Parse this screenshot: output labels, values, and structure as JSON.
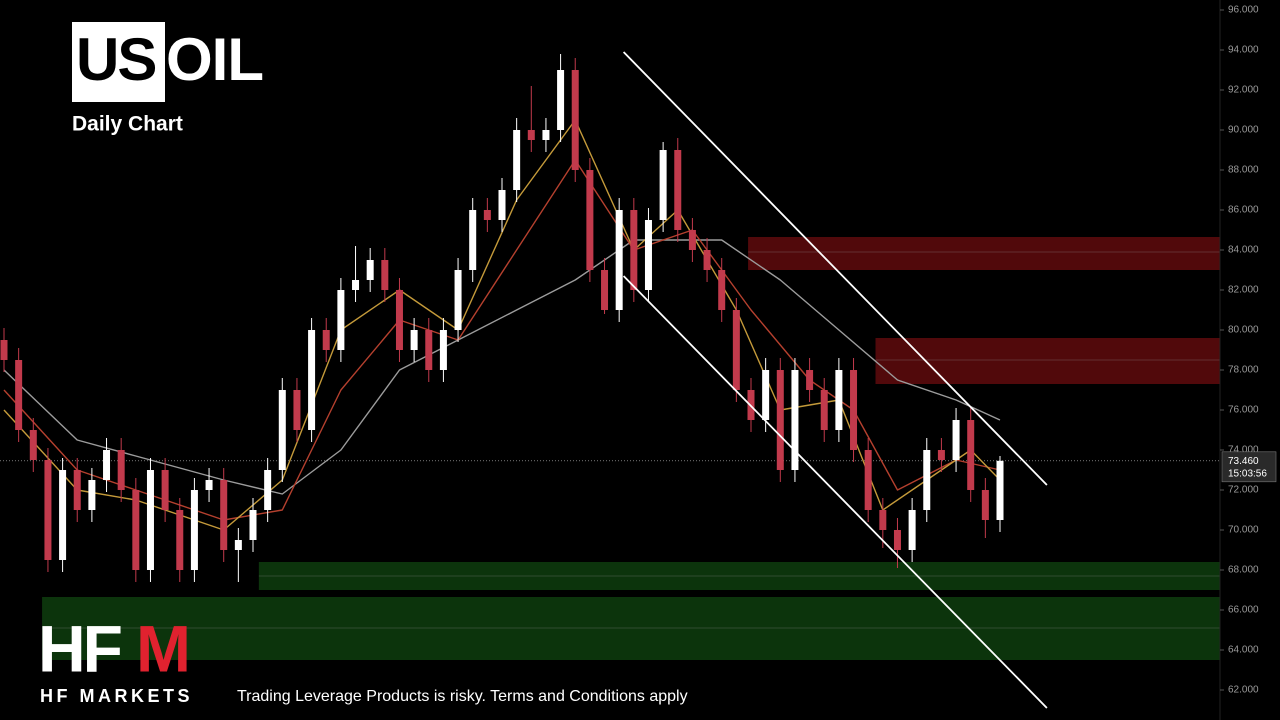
{
  "header": {
    "title_part1": "US",
    "title_part2": "OIL",
    "subtitle": "Daily Chart"
  },
  "footer": {
    "logo_part1": "HF",
    "logo_part2": "M",
    "brand": "HF MARKETS",
    "disclaimer": "Trading  Leverage Products is risky. Terms and Conditions apply"
  },
  "chart_data": {
    "type": "candlestick",
    "ylim": [
      60.5,
      96.5
    ],
    "yticks": [
      {
        "value": 62,
        "label": "62.000"
      },
      {
        "value": 64,
        "label": "64.000"
      },
      {
        "value": 66,
        "label": "66.000"
      },
      {
        "value": 68,
        "label": "68.000"
      },
      {
        "value": 70,
        "label": "70.000"
      },
      {
        "value": 72,
        "label": "72.000"
      },
      {
        "value": 74,
        "label": "74.000"
      },
      {
        "value": 76,
        "label": "76.000"
      },
      {
        "value": 78,
        "label": "78.000"
      },
      {
        "value": 80,
        "label": "80.000"
      },
      {
        "value": 82,
        "label": "82.000"
      },
      {
        "value": 84,
        "label": "84.000"
      },
      {
        "value": 86,
        "label": "86.000"
      },
      {
        "value": 88,
        "label": "88.000"
      },
      {
        "value": 90,
        "label": "90.000"
      },
      {
        "value": 92,
        "label": "92.000"
      },
      {
        "value": 94,
        "label": "94.000"
      },
      {
        "value": 96,
        "label": "96.000"
      }
    ],
    "up_color": "#ffffff",
    "down_color": "#c23a4c",
    "open": [
      79.5,
      78.5,
      75,
      73.5,
      68.5,
      73,
      71,
      72.5,
      74,
      72,
      68,
      73,
      71,
      68,
      72,
      72.5,
      69,
      69.5,
      71,
      73,
      77,
      75,
      80,
      79,
      82,
      82.5,
      83.5,
      82,
      79,
      80,
      78,
      80,
      83,
      86,
      85.5,
      87,
      90,
      89.5,
      90,
      93,
      88,
      83,
      81,
      86,
      82,
      85.5,
      89,
      85,
      84,
      83,
      81,
      77,
      75.5,
      78,
      73,
      78,
      77,
      75,
      78,
      74,
      71,
      70,
      69,
      71,
      74,
      73.5,
      75.5,
      72,
      70.5
    ],
    "high": [
      80.1,
      79.1,
      75.6,
      74.1,
      73.6,
      73.6,
      73.1,
      74.6,
      74.6,
      72.6,
      73.6,
      73.6,
      71.6,
      72.6,
      73.1,
      73.1,
      70.1,
      71.6,
      73.6,
      77.6,
      77.6,
      80.6,
      80.6,
      82.6,
      84.2,
      84.1,
      84.1,
      82.6,
      80.6,
      80.6,
      80.6,
      83.6,
      86.6,
      86.6,
      87.6,
      90.6,
      92.2,
      90.6,
      93.8,
      93.6,
      88.6,
      83.6,
      86.6,
      86.6,
      86.1,
      89.4,
      89.6,
      85.6,
      84.6,
      83.6,
      81.6,
      77.6,
      78.6,
      78.6,
      78.6,
      78.6,
      77.6,
      78.6,
      78.6,
      74.6,
      71.6,
      70.6,
      71.6,
      74.6,
      74.6,
      76.1,
      76.1,
      72.6,
      73.7
    ],
    "low": [
      77.9,
      74.4,
      72.9,
      67.9,
      67.9,
      70.4,
      70.4,
      71.9,
      71.4,
      67.4,
      67.4,
      70.4,
      67.4,
      67.4,
      71.4,
      68.4,
      67.4,
      68.9,
      70.4,
      72.4,
      74.4,
      74.4,
      78.4,
      78.4,
      81.4,
      81.9,
      81.4,
      78.4,
      78.4,
      77.4,
      77.4,
      79.4,
      82.4,
      84.9,
      84.9,
      86.4,
      88.9,
      88.9,
      89.4,
      87.4,
      82.4,
      80.8,
      80.4,
      81.4,
      81.4,
      84.9,
      84.4,
      83.4,
      82.4,
      80.4,
      76.4,
      74.9,
      74.9,
      72.4,
      72.4,
      76.4,
      74.4,
      74.4,
      73.4,
      70.4,
      69.1,
      68.1,
      68.4,
      70.4,
      72.9,
      72.9,
      71.4,
      69.6,
      69.9
    ],
    "close": [
      78.5,
      75,
      73.5,
      68.5,
      73,
      71,
      72.5,
      74,
      72,
      68,
      73,
      71,
      68,
      72,
      72.5,
      69,
      69.5,
      71,
      73,
      77,
      75,
      80,
      79,
      82,
      82.5,
      83.5,
      82,
      79,
      80,
      78,
      80,
      83,
      86,
      85.5,
      87,
      90,
      89.5,
      90,
      93,
      88,
      83,
      81,
      86,
      82,
      85.5,
      89,
      85,
      84,
      83,
      81,
      77,
      75.5,
      78,
      73,
      78,
      77,
      75,
      78,
      74,
      71,
      70,
      69,
      71,
      74,
      73.5,
      75.5,
      72,
      70.5,
      73.46
    ],
    "moving_averages": [
      {
        "color": "#9c9c9c",
        "x": [
          0,
          5,
          9,
          15,
          19,
          23,
          27,
          31,
          35,
          39,
          43,
          47,
          49,
          53,
          57,
          61,
          65,
          68
        ],
        "values": [
          78,
          74.5,
          73.7,
          72.5,
          71.8,
          74,
          78,
          79.5,
          81,
          82.5,
          84.5,
          84.5,
          84.5,
          82.5,
          80,
          77.5,
          76.5,
          75.5
        ]
      },
      {
        "color": "#b5402e",
        "x": [
          0,
          5,
          9,
          15,
          19,
          23,
          27,
          31,
          35,
          39,
          43,
          47,
          51,
          55,
          58,
          61,
          65,
          68
        ],
        "values": [
          77,
          73,
          72,
          70.5,
          71,
          77,
          80.5,
          79.5,
          84,
          88.5,
          84,
          85,
          81,
          77.5,
          76,
          72,
          73.5,
          73
        ]
      },
      {
        "color": "#c49a3a",
        "x": [
          0,
          5,
          9,
          15,
          19,
          23,
          27,
          31,
          35,
          39,
          43,
          46,
          50,
          53,
          57,
          60,
          63,
          66,
          68
        ],
        "values": [
          76,
          72,
          71.5,
          70,
          72.5,
          80,
          82,
          80,
          86.5,
          90.5,
          84,
          86,
          81,
          76,
          76.5,
          71,
          72.5,
          74,
          72.5
        ]
      }
    ],
    "trend_lines": [
      {
        "color": "#ffffff",
        "x": [
          42.3,
          71.2
        ],
        "values": [
          93.9,
          72.25
        ]
      },
      {
        "color": "#ffffff",
        "x": [
          42.3,
          71.2
        ],
        "values": [
          82.7,
          61.1
        ]
      }
    ],
    "zones": [
      {
        "color": "#5a0a0c",
        "x_start": 50.8,
        "top": 84.65,
        "bottom": 83.0,
        "mid": 83.9
      },
      {
        "color": "#5a0a0c",
        "x_start": 59.5,
        "top": 79.6,
        "bottom": 77.3,
        "mid": 78.5
      },
      {
        "color": "#0d3a0d",
        "x_start": 17.4,
        "top": 68.4,
        "bottom": 67.0,
        "mid": 67.7
      },
      {
        "color": "#0d3a0d",
        "x_start": 2.6,
        "top": 66.65,
        "bottom": 63.5,
        "mid": 65.1
      }
    ],
    "last_price": 73.46,
    "last_price_label": "73.460",
    "countdown": "15:03:56"
  }
}
